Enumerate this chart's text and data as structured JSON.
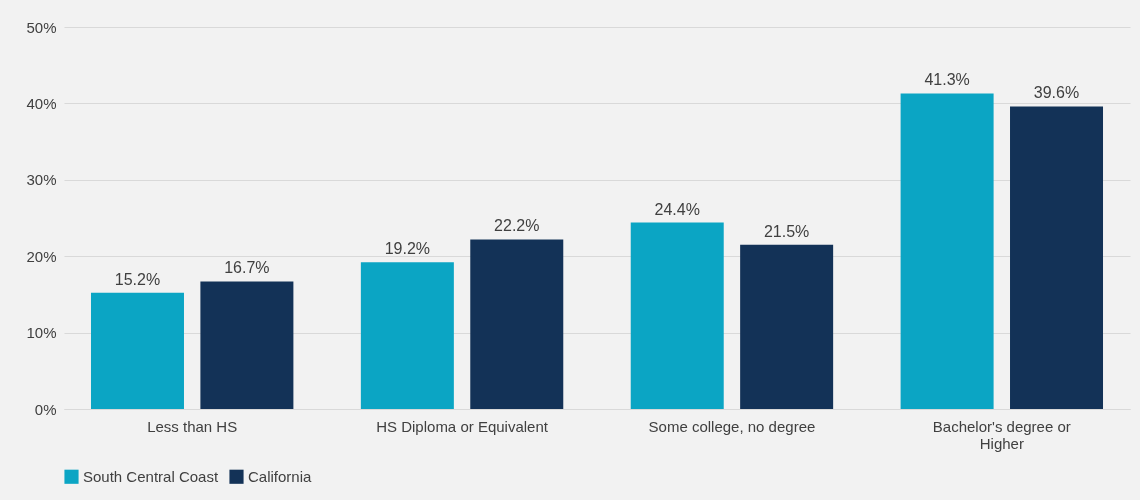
{
  "chart_data": {
    "type": "bar",
    "categories": [
      "Less than HS",
      "HS Diploma or Equivalent",
      "Some college, no degree",
      "Bachelor's degree or Higher"
    ],
    "series": [
      {
        "name": "South Central Coast",
        "color": "#0ba5c4",
        "values": [
          15.2,
          19.2,
          24.4,
          41.3
        ],
        "value_labels": [
          "15.2%",
          "19.2%",
          "24.4%",
          "41.3%"
        ]
      },
      {
        "name": "California",
        "color": "#133257",
        "values": [
          16.7,
          22.2,
          21.5,
          39.6
        ],
        "value_labels": [
          "16.7%",
          "22.2%",
          "21.5%",
          "39.6%"
        ]
      }
    ],
    "ylim": [
      0,
      50
    ],
    "yticks": [
      {
        "value": 0,
        "label": "0%"
      },
      {
        "value": 10,
        "label": "10%"
      },
      {
        "value": 20,
        "label": "20%"
      },
      {
        "value": 30,
        "label": "30%"
      },
      {
        "value": 40,
        "label": "40%"
      },
      {
        "value": 50,
        "label": "50%"
      }
    ],
    "grid": "y",
    "legend": "bottom"
  }
}
